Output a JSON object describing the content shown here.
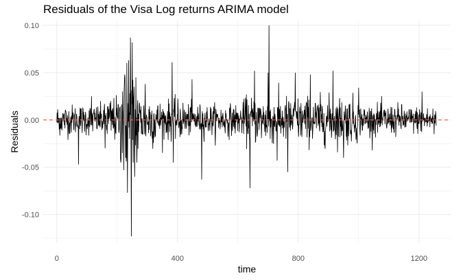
{
  "chart_data": {
    "type": "line",
    "title": "Residuals of the Visa Log returns ARIMA model",
    "xlabel": "time",
    "ylabel": "Residuals",
    "xlim": [
      -45,
      1305
    ],
    "ylim": [
      -0.13,
      0.105
    ],
    "x_ticks": [
      {
        "value": 0,
        "label": "0"
      },
      {
        "value": 400,
        "label": "400"
      },
      {
        "value": 800,
        "label": "800"
      },
      {
        "value": 1200,
        "label": "1200"
      }
    ],
    "y_ticks": [
      {
        "value": 0.1,
        "label": "0.10"
      },
      {
        "value": 0.05,
        "label": "0.05"
      },
      {
        "value": 0.0,
        "label": "0.00"
      },
      {
        "value": -0.05,
        "label": "-0.05"
      },
      {
        "value": -0.1,
        "label": "-0.10"
      }
    ],
    "grid": true,
    "reference_line": {
      "y": 0,
      "color": "#e76450",
      "style": "dashed"
    },
    "line_color": "#000000",
    "n_points": 1258,
    "base_noise_scale": 0.009,
    "volatility_regimes": [
      {
        "start": 0,
        "end": 160,
        "scale": 0.008
      },
      {
        "start": 160,
        "end": 210,
        "scale": 0.012
      },
      {
        "start": 210,
        "end": 270,
        "scale": 0.028
      },
      {
        "start": 270,
        "end": 330,
        "scale": 0.014
      },
      {
        "start": 330,
        "end": 430,
        "scale": 0.01
      },
      {
        "start": 430,
        "end": 620,
        "scale": 0.008
      },
      {
        "start": 620,
        "end": 1000,
        "scale": 0.012
      },
      {
        "start": 1000,
        "end": 1150,
        "scale": 0.008
      },
      {
        "start": 1150,
        "end": 1258,
        "scale": 0.007
      }
    ],
    "notable_points": [
      {
        "x": 8,
        "y": -0.01
      },
      {
        "x": 72,
        "y": -0.047
      },
      {
        "x": 115,
        "y": 0.025
      },
      {
        "x": 160,
        "y": -0.03
      },
      {
        "x": 218,
        "y": 0.03
      },
      {
        "x": 222,
        "y": -0.053
      },
      {
        "x": 225,
        "y": 0.048
      },
      {
        "x": 228,
        "y": -0.04
      },
      {
        "x": 232,
        "y": 0.06
      },
      {
        "x": 234,
        "y": -0.077
      },
      {
        "x": 238,
        "y": 0.063
      },
      {
        "x": 241,
        "y": -0.02
      },
      {
        "x": 244,
        "y": 0.087
      },
      {
        "x": 247,
        "y": -0.123
      },
      {
        "x": 250,
        "y": 0.082
      },
      {
        "x": 253,
        "y": -0.045
      },
      {
        "x": 256,
        "y": 0.035
      },
      {
        "x": 258,
        "y": -0.06
      },
      {
        "x": 262,
        "y": 0.045
      },
      {
        "x": 266,
        "y": -0.03
      },
      {
        "x": 293,
        "y": 0.038
      },
      {
        "x": 382,
        "y": 0.061
      },
      {
        "x": 386,
        "y": -0.045
      },
      {
        "x": 448,
        "y": 0.043
      },
      {
        "x": 480,
        "y": -0.063
      },
      {
        "x": 640,
        "y": -0.072
      },
      {
        "x": 655,
        "y": 0.052
      },
      {
        "x": 700,
        "y": 0.05
      },
      {
        "x": 703,
        "y": 0.1
      },
      {
        "x": 707,
        "y": -0.02
      },
      {
        "x": 730,
        "y": -0.043
      },
      {
        "x": 765,
        "y": -0.055
      },
      {
        "x": 790,
        "y": 0.05
      },
      {
        "x": 840,
        "y": 0.048
      },
      {
        "x": 915,
        "y": 0.052
      },
      {
        "x": 950,
        "y": -0.04
      },
      {
        "x": 1000,
        "y": 0.034
      },
      {
        "x": 1210,
        "y": 0.03
      },
      {
        "x": 1250,
        "y": -0.015
      }
    ]
  }
}
